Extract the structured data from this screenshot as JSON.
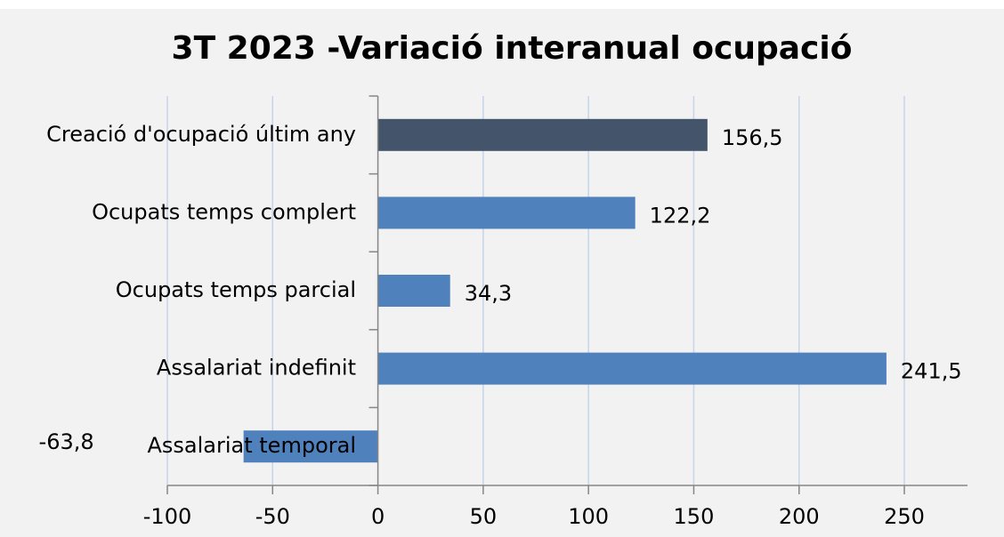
{
  "chart_data": {
    "type": "barh",
    "title": "3T 2023 -Variació interanual ocupació",
    "categories": [
      "Creació d'ocupació últim any",
      "Ocupats temps complert",
      "Ocupats temps parcial",
      "Assalariat indefinit",
      "Assalariat temporal"
    ],
    "values": [
      156.5,
      122.2,
      34.3,
      241.5,
      -63.8
    ],
    "value_labels": [
      "156,5",
      "122,2",
      "34,3",
      "241,5",
      "-63,8"
    ],
    "colors": [
      "#44546a",
      "#4f81bd",
      "#4f81bd",
      "#4f81bd",
      "#4f81bd"
    ],
    "xlim": [
      -100,
      280
    ],
    "xticks": [
      -100,
      -50,
      0,
      50,
      100,
      150,
      200,
      250
    ],
    "grid": true
  }
}
